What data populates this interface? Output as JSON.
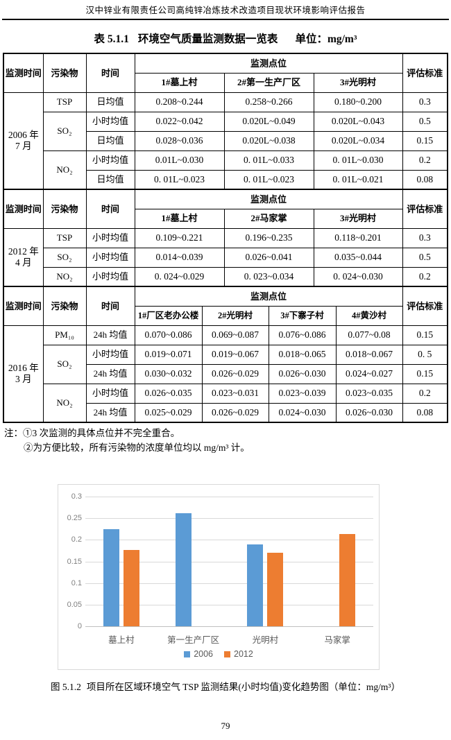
{
  "page": {
    "running_header": "汉中锌业有限责任公司高纯锌冶炼技术改造项目现状环境影响评估报告",
    "page_number": "79"
  },
  "table": {
    "caption": {
      "label": "表 5.1.1",
      "title": "环境空气质量监测数据一览表",
      "unit": "单位：mg/m³"
    },
    "header_labels": {
      "time": "监测时间",
      "pollutant": "污染物",
      "period": "时间",
      "points": "监测点位",
      "standard": "评估标准"
    },
    "sections": [
      {
        "period": [
          "2006 年",
          "7 月"
        ],
        "points": [
          "1#墓上村",
          "2#第一生产厂区",
          "3#光明村"
        ],
        "rows": [
          {
            "pollutant": "TSP",
            "period": "日均值",
            "values": [
              "0.208~0.244",
              "0.258~0.266",
              "0.180~0.200"
            ],
            "standard": "0.3"
          },
          {
            "pollutant": "SO₂",
            "period": "小时均值",
            "values": [
              "0.022~0.042",
              "0.020L~0.049",
              "0.020L~0.043"
            ],
            "standard": "0.5"
          },
          {
            "period": "日均值",
            "values": [
              "0.028~0.036",
              "0.020L~0.038",
              "0.020L~0.034"
            ],
            "standard": "0.15"
          },
          {
            "pollutant": "NO₂",
            "period": "小时均值",
            "values": [
              "0.01L~0.030",
              "0. 01L~0.033",
              "0. 01L~0.030"
            ],
            "standard": "0.2"
          },
          {
            "period": "日均值",
            "values": [
              "0. 01L~0.023",
              "0. 01L~0.023",
              "0. 01L~0.021"
            ],
            "standard": "0.08"
          }
        ]
      },
      {
        "period": [
          "2012 年",
          "4 月"
        ],
        "points": [
          "1#墓上村",
          "2#马家掌",
          "3#光明村"
        ],
        "rows": [
          {
            "pollutant": "TSP",
            "period": "小时均值",
            "values": [
              "0.109~0.221",
              "0.196~0.235",
              "0.118~0.201"
            ],
            "standard": "0.3"
          },
          {
            "pollutant": "SO₂",
            "period": "小时均值",
            "values": [
              "0.014~0.039",
              "0.026~0.041",
              "0.035~0.044"
            ],
            "standard": "0.5"
          },
          {
            "pollutant": "NO₂",
            "period": "小时均值",
            "values": [
              "0. 024~0.029",
              "0. 023~0.034",
              "0. 024~0.030"
            ],
            "standard": "0.2"
          }
        ]
      },
      {
        "period": [
          "2016 年",
          "3 月"
        ],
        "points": [
          "1#厂区老办公楼",
          "2#光明村",
          "3#下寨子村",
          "4#黄沙村"
        ],
        "rows": [
          {
            "pollutant": "PM₁₀",
            "period": "24h 均值",
            "values": [
              "0.070~0.086",
              "0.069~0.087",
              "0.076~0.086",
              "0.077~0.08"
            ],
            "standard": "0.15"
          },
          {
            "pollutant": "SO₂",
            "period": "小时均值",
            "values": [
              "0.019~0.071",
              "0.019~0.067",
              "0.018~0.065",
              "0.018~0.067"
            ],
            "standard": "0. 5"
          },
          {
            "period": "24h 均值",
            "values": [
              "0.030~0.032",
              "0.026~0.029",
              "0.026~0.030",
              "0.024~0.027"
            ],
            "standard": "0.15"
          },
          {
            "pollutant": "NO₂",
            "period": "小时均值",
            "values": [
              "0.026~0.035",
              "0.023~0.031",
              "0.023~0.039",
              "0.023~0.035"
            ],
            "standard": "0.2"
          },
          {
            "period": "24h 均值",
            "values": [
              "0.025~0.029",
              "0.026~0.029",
              "0.024~0.030",
              "0.026~0.030"
            ],
            "standard": "0.08"
          }
        ]
      }
    ],
    "notes": [
      "注：①3 次监测的具体点位并不完全重合。",
      "②为方便比较，所有污染物的浓度单位均以 mg/m³ 计。"
    ]
  },
  "chart_data": {
    "type": "bar",
    "categories": [
      "墓上村",
      "第一生产厂区",
      "光明村",
      "马家掌"
    ],
    "series": [
      {
        "name": "2006",
        "color": "#5B9BD5",
        "values": [
          0.225,
          0.262,
          0.189,
          null
        ]
      },
      {
        "name": "2012",
        "color": "#ED7D31",
        "values": [
          0.177,
          null,
          0.17,
          0.213
        ]
      }
    ],
    "title": "",
    "xlabel": "",
    "ylabel": "",
    "ylim": [
      0,
      0.3
    ],
    "yticks": [
      "0",
      "0.05",
      "0.1",
      "0.15",
      "0.2",
      "0.25",
      "0.3"
    ],
    "grid": true,
    "legend_position": "bottom"
  },
  "figure": {
    "caption_label": "图 5.1.2",
    "caption_text": "项目所在区域环境空气 TSP 监测结果(小时均值)变化趋势图（单位：mg/m³）"
  }
}
